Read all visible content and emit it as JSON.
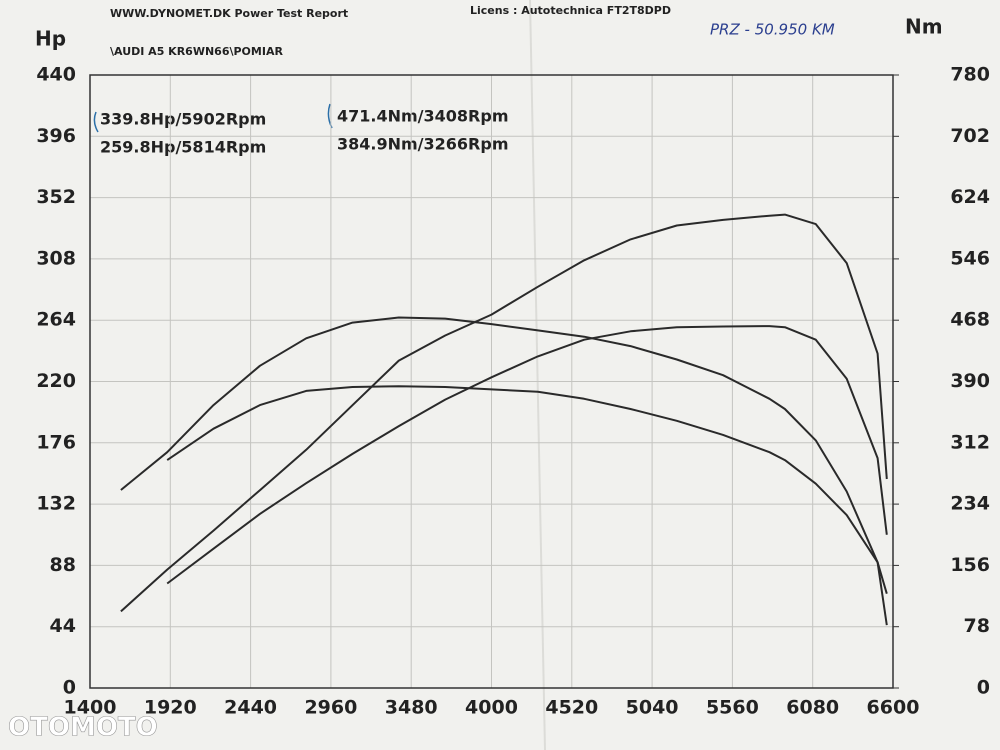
{
  "chart_data": {
    "type": "line",
    "header": "WWW.DYNOMET.DK  Power Test Report",
    "license": "Licens :  Autotechnica  FT2T8DPD",
    "subtitle": "\\AUDI A5 KR6WN66\\POMIAR",
    "handwritten_note": "PRZ - 50.950 KM",
    "watermark": "OTOMOTO",
    "y_label": "Hp",
    "y2_label": "Nm",
    "peak_labels": [
      "339.8Hp/5902Rpm",
      "259.8Hp/5814Rpm",
      "471.4Nm/3408Rpm",
      "384.9Nm/3266Rpm"
    ],
    "x": [
      1600,
      1900,
      2200,
      2500,
      2800,
      3100,
      3400,
      3700,
      4000,
      4300,
      4600,
      4900,
      5200,
      5500,
      5800,
      5900,
      6100,
      6300,
      6500,
      6560
    ],
    "xlim": [
      1400,
      6600
    ],
    "xticks": [
      1400,
      1920,
      2440,
      2960,
      3480,
      4000,
      4520,
      5040,
      5560,
      6080,
      6600
    ],
    "ylim": [
      0,
      440
    ],
    "yticks": [
      0,
      44,
      88,
      132,
      176,
      220,
      264,
      308,
      352,
      396,
      440
    ],
    "y2lim": [
      0,
      780
    ],
    "y2ticks": [
      0,
      78,
      156,
      234,
      312,
      390,
      468,
      546,
      624,
      702,
      780
    ],
    "grid": true,
    "series": [
      {
        "name": "339.8Hp/5902Rpm",
        "color": "#2a2a2a",
        "axis": "y",
        "values": [
          55,
          85,
          113,
          142,
          171,
          203,
          235,
          253,
          268,
          288,
          307,
          322,
          332,
          336,
          339,
          339.8,
          333,
          305,
          240,
          150
        ]
      },
      {
        "name": "259.8Hp/5814Rpm",
        "color": "#2a2a2a",
        "axis": "y",
        "values": [
          null,
          75,
          100,
          125,
          147,
          168,
          188,
          207,
          223,
          238,
          250,
          256,
          259,
          259.5,
          259.8,
          259,
          250,
          222,
          165,
          110
        ]
      },
      {
        "name": "471.4Nm/3408Rpm",
        "color": "#2a2a2a",
        "axis": "y2",
        "values": [
          252,
          300,
          360,
          410,
          445,
          465,
          471.4,
          470,
          463,
          455,
          447,
          435,
          418,
          398,
          368,
          355,
          315,
          250,
          160,
          80
        ]
      },
      {
        "name": "384.9Nm/3266Rpm",
        "color": "#2a2a2a",
        "axis": "y2",
        "values": [
          null,
          290,
          330,
          360,
          378,
          383,
          384,
          383,
          380,
          377,
          368,
          355,
          340,
          322,
          300,
          290,
          260,
          220,
          160,
          120
        ]
      }
    ]
  }
}
